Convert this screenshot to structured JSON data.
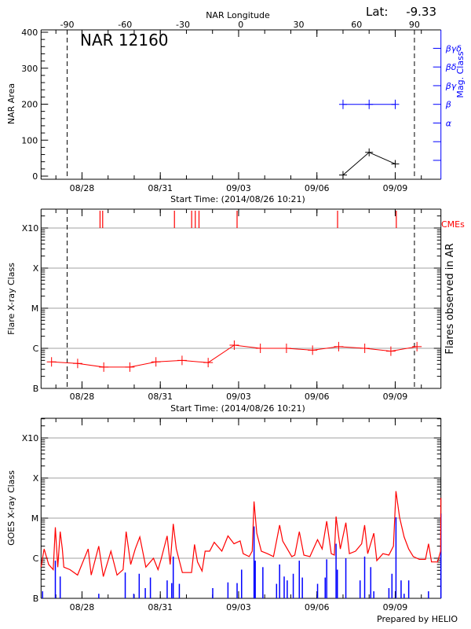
{
  "header": {
    "region_label": "NAR 12160",
    "lat_label": "Lat:",
    "lat_value": "-9.33",
    "longitude_axis_label": "NAR Longitude",
    "footer": "Prepared by HELIO"
  },
  "colors": {
    "area": "#000000",
    "mag_class": "#0000ff",
    "flares": "#ff0000",
    "cme": "#ff0000",
    "goes_long": "#ff0000",
    "goes_short": "#0000ff",
    "grid": "#a0a0a0"
  },
  "chart_data": [
    {
      "type": "line",
      "panel": "top",
      "xlabel": "Start Time: (2014/08/26 10:21)",
      "ylabel": "NAR Area",
      "y2label": "Mag. Class",
      "top_axis": {
        "label": "NAR Longitude",
        "ticks": [
          "-90",
          "-60",
          "-30",
          "0",
          "30",
          "60",
          "90"
        ]
      },
      "xlim": [
        "08/26 10:21",
        "09/10 18:00"
      ],
      "x_ticks": [
        "08/28",
        "08/31",
        "09/03",
        "09/06",
        "09/09"
      ],
      "ylim": [
        -9,
        413
      ],
      "y_ticks": [
        "0",
        "100",
        "200",
        "300",
        "400"
      ],
      "y2_ticks": [
        "α",
        "β",
        "βγ",
        "βδ",
        "βγδ"
      ],
      "limb_markers": [
        {
          "longitude": -90,
          "time": "08/27 10:21"
        },
        {
          "longitude": 90,
          "time": "09/09 17:40"
        }
      ],
      "series": [
        {
          "name": "NAR Area",
          "x": [
            "09/07 00:00",
            "09/08 00:00",
            "09/09 00:00"
          ],
          "y": [
            3,
            66,
            34
          ]
        },
        {
          "name": "Mag. Class",
          "x": [
            "09/07 00:00",
            "09/08 00:00",
            "09/09 00:00"
          ],
          "y": [
            "β",
            "β",
            "β"
          ]
        }
      ]
    },
    {
      "type": "line",
      "panel": "middle",
      "xlabel": "Start Time: (2014/08/26 10:21)",
      "ylabel": "Flare X-ray Class",
      "y2label": "Flares observed in AR",
      "cme_label": "CMEs",
      "log_y": true,
      "y_ticks": [
        "B",
        "C",
        "M",
        "X",
        "X10"
      ],
      "x_ticks": [
        "08/28",
        "08/31",
        "09/03",
        "09/06",
        "09/09"
      ],
      "grid": true,
      "series": [
        {
          "x": [
            "08/26 20:00",
            "08/27 20:00",
            "08/28 20:00",
            "08/29 20:00",
            "08/30 20:00",
            "08/31 20:00",
            "09/01 20:00",
            "09/02 20:00",
            "09/03 20:00",
            "09/04 20:00",
            "09/05 20:00",
            "09/06 20:00",
            "09/07 20:00",
            "09/08 20:00",
            "09/09 20:00"
          ],
          "y": [
            4.6e-07,
            4.2e-07,
            3.4e-07,
            3.4e-07,
            4.6e-07,
            5e-07,
            4.4e-07,
            1.2e-06,
            1e-06,
            1e-06,
            9e-07,
            1.1e-06,
            1e-06,
            8.5e-07,
            1.1e-06
          ]
        }
      ],
      "cmes": [
        "08/28 16:35",
        "08/28 19:00",
        "08/31 13:00",
        "09/01 04:50",
        "09/01 08:10",
        "09/01 11:35",
        "09/02 22:35",
        "09/06 19:00",
        "09/09 01:00"
      ]
    },
    {
      "type": "line",
      "panel": "bottom",
      "ylabel": "GOES X-ray Class",
      "log_y": true,
      "y_ticks": [
        "B",
        "C",
        "M",
        "X",
        "X10"
      ],
      "x_ticks": [
        "08/28",
        "08/31",
        "09/03",
        "09/06",
        "09/09"
      ],
      "grid": true,
      "series": [
        {
          "color": "#ff0000",
          "points": [
            [
              "08/26 10:21",
              6e-07
            ],
            [
              "08/26 13:08",
              1.7e-06
            ],
            [
              "08/26 17:20",
              7e-07
            ],
            [
              "08/26 21:32",
              5.2e-07
            ],
            [
              "08/26 23:29",
              5.9e-06
            ],
            [
              "08/27 01:43",
              6e-07
            ],
            [
              "08/27 03:57",
              4.6e-06
            ],
            [
              "08/27 05:55",
              1.7e-06
            ],
            [
              "08/27 07:18",
              6e-07
            ],
            [
              "08/27 12:53",
              5.2e-07
            ],
            [
              "08/27 19:53",
              3.8e-07
            ],
            [
              "08/28 05:40",
              1.7e-06
            ],
            [
              "08/28 08:27",
              3.8e-07
            ],
            [
              "08/28 15:26",
              2e-06
            ],
            [
              "08/28 19:37",
              3.5e-07
            ],
            [
              "08/29 02:36",
              1.5e-06
            ],
            [
              "08/29 08:12",
              3.8e-07
            ],
            [
              "08/29 13:48",
              5.2e-07
            ],
            [
              "08/29 16:36",
              4.6e-06
            ],
            [
              "08/29 20:48",
              7e-07
            ],
            [
              "08/30 00:58",
              1.7e-06
            ],
            [
              "08/30 05:09",
              3.4e-06
            ],
            [
              "08/30 10:44",
              6e-07
            ],
            [
              "08/30 17:43",
              1e-06
            ],
            [
              "08/30 21:54",
              5.2e-07
            ],
            [
              "08/31 00:42",
              9.4e-07
            ],
            [
              "08/31 06:18",
              3.6e-06
            ],
            [
              "08/31 09:06",
              7e-07
            ],
            [
              "08/31 11:54",
              7.2e-06
            ],
            [
              "08/31 14:42",
              1.7e-06
            ],
            [
              "08/31 20:18",
              4.4e-07
            ],
            [
              "09/01 04:42",
              4.4e-07
            ],
            [
              "09/01 07:27",
              2.2e-06
            ],
            [
              "09/01 10:12",
              8.1e-07
            ],
            [
              "09/01 14:24",
              4.8e-07
            ],
            [
              "09/01 17:12",
              1.5e-06
            ],
            [
              "09/01 21:24",
              1.5e-06
            ],
            [
              "09/02 01:36",
              2.5e-06
            ],
            [
              "09/02 08:36",
              1.5e-06
            ],
            [
              "09/02 14:12",
              3.6e-06
            ],
            [
              "09/02 19:48",
              2.3e-06
            ],
            [
              "09/03 01:24",
              2.7e-06
            ],
            [
              "09/03 04:12",
              1.3e-06
            ],
            [
              "09/03 09:42",
              1.1e-06
            ],
            [
              "09/03 12:30",
              1.5e-06
            ],
            [
              "09/03 14:12",
              2.6e-05
            ],
            [
              "09/03 16:42",
              4.2e-06
            ],
            [
              "09/03 20:54",
              1.5e-06
            ],
            [
              "09/04 02:30",
              1.3e-06
            ],
            [
              "09/04 08:06",
              1.1e-06
            ],
            [
              "09/04 13:42",
              6.7e-06
            ],
            [
              "09/04 16:30",
              2.7e-06
            ],
            [
              "09/04 19:18",
              2e-06
            ],
            [
              "09/05 00:54",
              1.1e-06
            ],
            [
              "09/05 03:39",
              1.2e-06
            ],
            [
              "09/05 07:48",
              4.6e-06
            ],
            [
              "09/05 12:00",
              1.2e-06
            ],
            [
              "09/05 17:36",
              1.1e-06
            ],
            [
              "09/06 00:36",
              2.9e-06
            ],
            [
              "09/06 04:48",
              1.7e-06
            ],
            [
              "09/06 09:00",
              8.4e-06
            ],
            [
              "09/06 13:12",
              1.3e-06
            ],
            [
              "09/06 16:00",
              1.2e-06
            ],
            [
              "09/06 17:36",
              1.1e-05
            ],
            [
              "09/06 21:30",
              1.7e-06
            ],
            [
              "09/07 02:36",
              7.7e-06
            ],
            [
              "09/07 05:54",
              1.3e-06
            ],
            [
              "09/07 11:30",
              1.5e-06
            ],
            [
              "09/07 17:06",
              2.3e-06
            ],
            [
              "09/07 19:54",
              6.7e-06
            ],
            [
              "09/07 22:42",
              1.3e-06
            ],
            [
              "09/08 04:18",
              4.2e-06
            ],
            [
              "09/08 07:06",
              8.7e-07
            ],
            [
              "09/08 12:42",
              1.3e-06
            ],
            [
              "09/08 18:12",
              1.2e-06
            ],
            [
              "09/08 22:24",
              2e-06
            ],
            [
              "09/09 00:42",
              4.7e-05
            ],
            [
              "09/09 04:00",
              1.05e-05
            ],
            [
              "09/09 08:12",
              3.4e-06
            ],
            [
              "09/09 12:24",
              1.7e-06
            ],
            [
              "09/09 16:36",
              1.1e-06
            ],
            [
              "09/09 22:12",
              9.4e-07
            ],
            [
              "09/10 03:48",
              9.4e-07
            ],
            [
              "09/10 06:36",
              2.3e-06
            ],
            [
              "09/10 09:24",
              8.1e-07
            ],
            [
              "09/10 14:57",
              8.1e-07
            ],
            [
              "09/10 17:45",
              1.5e-06
            ],
            [
              "09/10 18:00",
              3.2e-05
            ]
          ]
        },
        {
          "color": "#0000ff",
          "points": [
            [
              "08/26 11:45",
              1.5e-07
            ],
            [
              "08/26 23:29",
              8.7e-07
            ],
            [
              "08/27 03:57",
              3.5e-07
            ],
            [
              "08/28 15:26",
              1.3e-07
            ],
            [
              "08/29 15:45",
              4.4e-07
            ],
            [
              "08/29 23:36",
              1.3e-07
            ],
            [
              "08/30 04:36",
              4.1e-07
            ],
            [
              "08/30 10:12",
              1.8e-07
            ],
            [
              "08/30 14:54",
              3.3e-07
            ],
            [
              "08/31 06:18",
              2.8e-07
            ],
            [
              "08/31 10:30",
              2.4e-07
            ],
            [
              "08/31 11:54",
              1.1e-06
            ],
            [
              "08/31 17:30",
              2.3e-07
            ],
            [
              "09/02 00:12",
              1.8e-07
            ],
            [
              "09/02 14:12",
              2.5e-07
            ],
            [
              "09/02 22:36",
              2.4e-07
            ],
            [
              "09/03 02:45",
              5.2e-07
            ],
            [
              "09/03 14:12",
              6.2e-06
            ],
            [
              "09/03 15:18",
              8.7e-07
            ],
            [
              "09/03 22:18",
              6e-07
            ],
            [
              "09/04 10:54",
              2.3e-07
            ],
            [
              "09/04 13:42",
              7e-07
            ],
            [
              "09/04 17:54",
              3.5e-07
            ],
            [
              "09/04 20:42",
              2.8e-07
            ],
            [
              "09/05 02:15",
              4.1e-07
            ],
            [
              "09/05 07:48",
              8.7e-07
            ],
            [
              "09/05 10:36",
              3.3e-07
            ],
            [
              "09/06 00:36",
              2.3e-07
            ],
            [
              "09/06 07:36",
              3.3e-07
            ],
            [
              "09/06 09:00",
              9.4e-07
            ],
            [
              "09/06 17:36",
              2.3e-06
            ],
            [
              "09/06 18:48",
              5.2e-07
            ],
            [
              "09/07 02:36",
              1e-06
            ],
            [
              "09/07 15:42",
              2.8e-07
            ],
            [
              "09/07 19:54",
              1.1e-06
            ],
            [
              "09/08 01:30",
              6e-07
            ],
            [
              "09/08 04:18",
              1.5e-07
            ],
            [
              "09/08 18:12",
              1.8e-07
            ],
            [
              "09/08 21:00",
              4.1e-07
            ],
            [
              "09/09 00:42",
              1.05e-05
            ],
            [
              "09/09 05:24",
              2.8e-07
            ],
            [
              "09/09 08:12",
              1.3e-07
            ],
            [
              "09/09 12:24",
              2.8e-07
            ],
            [
              "09/10 06:36",
              1.5e-07
            ],
            [
              "09/10 18:00",
              1.3e-05
            ]
          ]
        }
      ]
    }
  ]
}
